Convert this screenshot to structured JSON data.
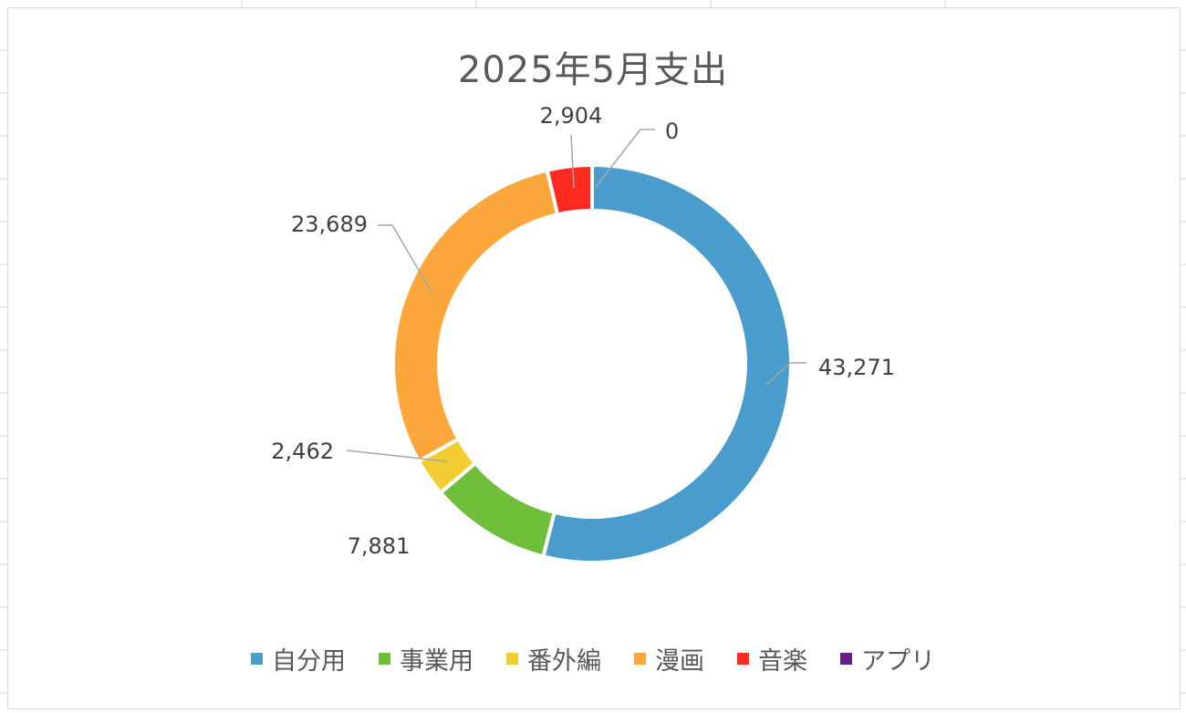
{
  "chart_data": {
    "type": "pie",
    "variant": "doughnut",
    "title": "2025年5月支出",
    "categories": [
      "自分用",
      "事業用",
      "番外編",
      "漫画",
      "音楽",
      "アプリ"
    ],
    "values": [
      43271,
      7881,
      2462,
      23689,
      2904,
      0
    ],
    "value_labels": [
      "43,271",
      "7,881",
      "2,462",
      "23,689",
      "2,904",
      "0"
    ],
    "colors": [
      "#4a9ccc",
      "#70bf3a",
      "#f2cd31",
      "#fba73b",
      "#fd2a20",
      "#6a1b8a"
    ],
    "legend_position": "bottom"
  }
}
